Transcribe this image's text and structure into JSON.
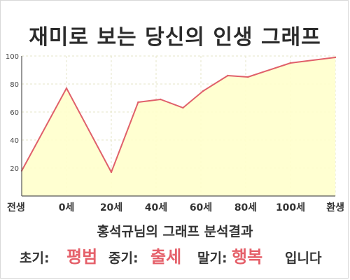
{
  "title": "재미로 보는 당신의 인생 그래프",
  "chart_data": {
    "type": "area",
    "title": "재미로 보는 당신의 인생 그래프",
    "x_ticks": [
      {
        "x": 0,
        "label": "전생"
      },
      {
        "x": 1,
        "label": "0세"
      },
      {
        "x": 2,
        "label": "20세"
      },
      {
        "x": 3,
        "label": "40세"
      },
      {
        "x": 4,
        "label": "60세"
      },
      {
        "x": 5,
        "label": "80세"
      },
      {
        "x": 6,
        "label": "100세"
      },
      {
        "x": 7,
        "label": "환생"
      }
    ],
    "points": [
      {
        "x": 0,
        "y": 18
      },
      {
        "x": 1,
        "y": 77
      },
      {
        "x": 2,
        "y": 17
      },
      {
        "x": 2.6,
        "y": 67
      },
      {
        "x": 3.1,
        "y": 69
      },
      {
        "x": 3.6,
        "y": 63
      },
      {
        "x": 4.05,
        "y": 75
      },
      {
        "x": 4.6,
        "y": 86
      },
      {
        "x": 5.05,
        "y": 85
      },
      {
        "x": 6,
        "y": 95
      },
      {
        "x": 7,
        "y": 99
      }
    ],
    "yticks": [
      20,
      40,
      60,
      80,
      100
    ],
    "ylim": [
      0,
      100
    ],
    "xlim": [
      0,
      7
    ],
    "grid": true,
    "colors": {
      "line": "#e0606a",
      "fill": "#ffffcc",
      "grid": "#e6e6c8"
    }
  },
  "footer": {
    "subtitle": "홍석규님의 그래프 분석결과",
    "early_label": "초기:",
    "early_value": "평범",
    "middle_label": "중기:",
    "middle_value": "출세",
    "late_label": "말기:",
    "late_value": "행복",
    "ending": "입니다"
  }
}
